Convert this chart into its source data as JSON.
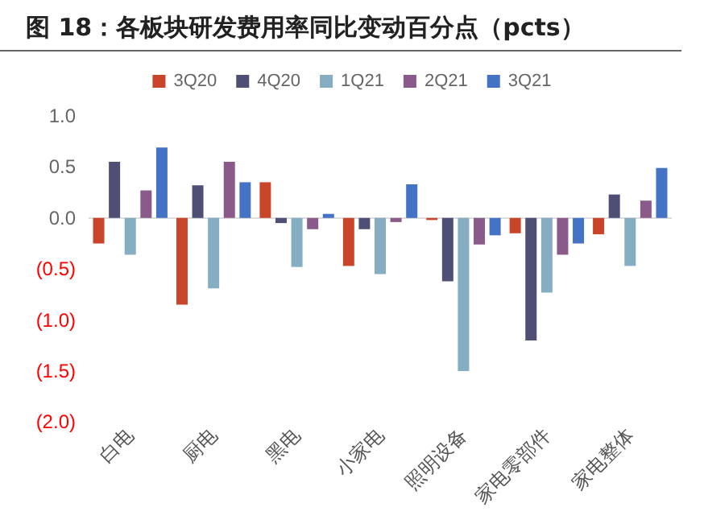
{
  "chart_data": {
    "type": "bar",
    "title": "图 18：各板块研发费用率同比变动百分点（pcts）",
    "categories": [
      "白电",
      "厨电",
      "黑电",
      "小家电",
      "照明设备",
      "家电零部件",
      "家电整体"
    ],
    "series": [
      {
        "name": "3Q20",
        "color": "#c8452a",
        "values": [
          -0.25,
          -0.85,
          0.35,
          -0.47,
          -0.02,
          -0.15,
          -0.16
        ]
      },
      {
        "name": "4Q20",
        "color": "#4f4e74",
        "values": [
          0.55,
          0.32,
          -0.05,
          -0.11,
          -0.62,
          -1.2,
          0.23
        ]
      },
      {
        "name": "1Q21",
        "color": "#85aec3",
        "values": [
          -0.36,
          -0.69,
          -0.48,
          -0.55,
          -1.5,
          -0.73,
          -0.47
        ]
      },
      {
        "name": "2Q21",
        "color": "#8a5a8a",
        "values": [
          0.27,
          0.55,
          -0.11,
          -0.04,
          -0.26,
          -0.36,
          0.17
        ]
      },
      {
        "name": "3Q21",
        "color": "#4472c4",
        "values": [
          0.69,
          0.35,
          0.04,
          0.33,
          -0.17,
          -0.25,
          0.49
        ]
      }
    ],
    "ylim": [
      -2,
      1
    ],
    "yticks": [
      {
        "value": -2,
        "label": "(2.0)"
      },
      {
        "value": -1.5,
        "label": "(1.5)"
      },
      {
        "value": -1,
        "label": "(1.0)"
      },
      {
        "value": -0.5,
        "label": "(0.5)"
      },
      {
        "value": 0,
        "label": "0.0"
      },
      {
        "value": 0.5,
        "label": "0.5"
      },
      {
        "value": 1,
        "label": "1.0"
      }
    ],
    "ref_lines": [
      {
        "axis": "y",
        "value": 0,
        "color": "#dddddd"
      }
    ],
    "grid": false,
    "legend": "top"
  }
}
